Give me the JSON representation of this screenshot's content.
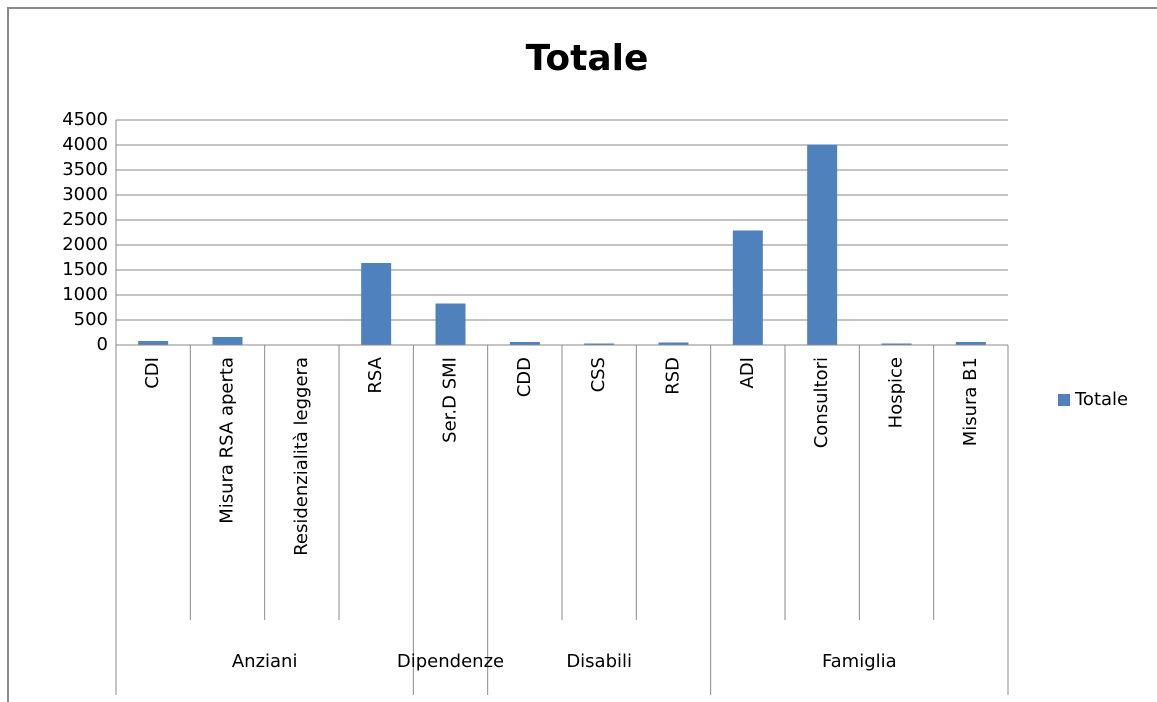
{
  "chart_data": {
    "type": "bar",
    "title": "Totale",
    "groups": [
      {
        "name": "Anziani",
        "categories": [
          "CDI",
          "Misura RSA aperta",
          "Residenzialità leggera",
          "RSA"
        ]
      },
      {
        "name": "Dipendenze",
        "categories": [
          "Ser.D SMI"
        ]
      },
      {
        "name": "Disabili",
        "categories": [
          "CDD",
          "CSS",
          "RSD"
        ]
      },
      {
        "name": "Famiglia",
        "categories": [
          "ADI",
          "Consultori",
          "Hospice",
          "Misura B1"
        ]
      }
    ],
    "series": [
      {
        "name": "Totale",
        "color": "#4f81bd",
        "values": [
          80,
          160,
          5,
          1640,
          830,
          60,
          30,
          50,
          2290,
          4010,
          30,
          60
        ]
      }
    ],
    "ylim": [
      0,
      4500
    ],
    "yticks": [
      0,
      500,
      1000,
      1500,
      2000,
      2500,
      3000,
      3500,
      4000,
      4500
    ],
    "grid": true,
    "legend": "right"
  }
}
